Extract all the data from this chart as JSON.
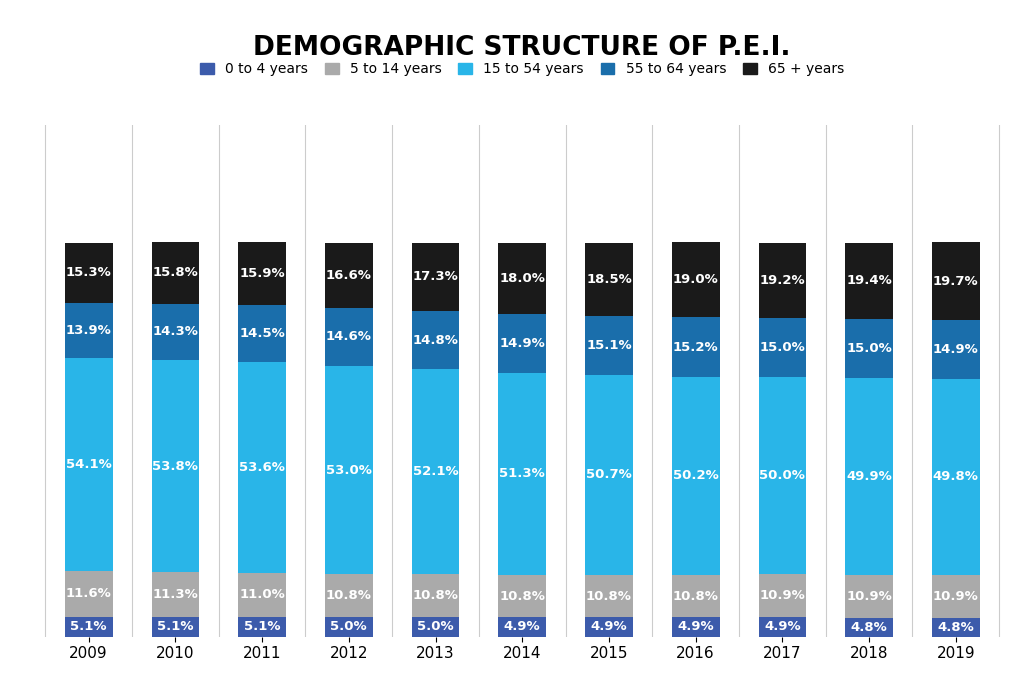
{
  "title": "DEMOGRAPHIC STRUCTURE OF P.E.I.",
  "years": [
    2009,
    2010,
    2011,
    2012,
    2013,
    2014,
    2015,
    2016,
    2017,
    2018,
    2019
  ],
  "categories": [
    "0 to 4 years",
    "5 to 14 years",
    "15 to 54 years",
    "55 to 64 years",
    "65 + years"
  ],
  "colors": [
    "#3c5bab",
    "#aaaaaa",
    "#29b5e8",
    "#1a6eab",
    "#1a1a1a"
  ],
  "data": {
    "0 to 4 years": [
      5.1,
      5.1,
      5.1,
      5.0,
      5.0,
      4.9,
      4.9,
      4.9,
      4.9,
      4.8,
      4.8
    ],
    "5 to 14 years": [
      11.6,
      11.3,
      11.0,
      10.8,
      10.8,
      10.8,
      10.8,
      10.8,
      10.9,
      10.9,
      10.9
    ],
    "15 to 54 years": [
      54.1,
      53.8,
      53.6,
      53.0,
      52.1,
      51.3,
      50.7,
      50.2,
      50.0,
      49.9,
      49.8
    ],
    "55 to 64 years": [
      13.9,
      14.3,
      14.5,
      14.6,
      14.8,
      14.9,
      15.1,
      15.2,
      15.0,
      15.0,
      14.9
    ],
    "65 + years": [
      15.3,
      15.8,
      15.9,
      16.6,
      17.3,
      18.0,
      18.5,
      19.0,
      19.2,
      19.4,
      19.7
    ]
  },
  "background_color": "#ffffff",
  "bar_width": 0.55,
  "title_fontsize": 19,
  "label_fontsize": 9.5,
  "legend_fontsize": 10,
  "tick_fontsize": 11,
  "ylim_max": 130
}
